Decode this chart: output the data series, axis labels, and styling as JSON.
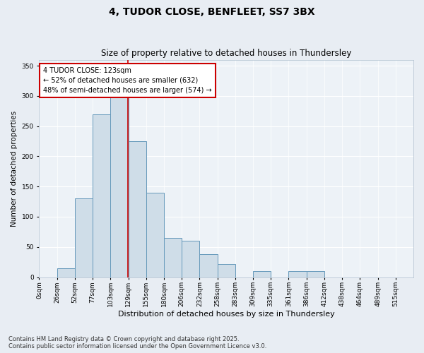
{
  "title": "4, TUDOR CLOSE, BENFLEET, SS7 3BX",
  "subtitle": "Size of property relative to detached houses in Thundersley",
  "xlabel": "Distribution of detached houses by size in Thundersley",
  "ylabel": "Number of detached properties",
  "bin_labels": [
    "0sqm",
    "26sqm",
    "52sqm",
    "77sqm",
    "103sqm",
    "129sqm",
    "155sqm",
    "180sqm",
    "206sqm",
    "232sqm",
    "258sqm",
    "283sqm",
    "309sqm",
    "335sqm",
    "361sqm",
    "386sqm",
    "412sqm",
    "438sqm",
    "464sqm",
    "489sqm",
    "515sqm"
  ],
  "bar_values": [
    0,
    15,
    130,
    270,
    300,
    225,
    140,
    65,
    60,
    38,
    22,
    0,
    10,
    0,
    10,
    10,
    0,
    0,
    0,
    0,
    0
  ],
  "bar_color": "#cfdde8",
  "bar_edge_color": "#6699bb",
  "property_line_x": 129,
  "property_line_label": "4 TUDOR CLOSE: 123sqm",
  "annotation_line1": "← 52% of detached houses are smaller (632)",
  "annotation_line2": "48% of semi-detached houses are larger (574) →",
  "annotation_box_facecolor": "#ffffff",
  "annotation_box_edgecolor": "#cc0000",
  "vline_color": "#cc0000",
  "ylim": [
    0,
    360
  ],
  "yticks": [
    0,
    50,
    100,
    150,
    200,
    250,
    300,
    350
  ],
  "footer_line1": "Contains HM Land Registry data © Crown copyright and database right 2025.",
  "footer_line2": "Contains public sector information licensed under the Open Government Licence v3.0.",
  "bg_color": "#e8edf3",
  "plot_bg_color": "#edf2f7",
  "title_fontsize": 10,
  "subtitle_fontsize": 8.5,
  "xlabel_fontsize": 8,
  "ylabel_fontsize": 7.5,
  "tick_fontsize": 6.5,
  "annotation_fontsize": 7,
  "footer_fontsize": 6
}
